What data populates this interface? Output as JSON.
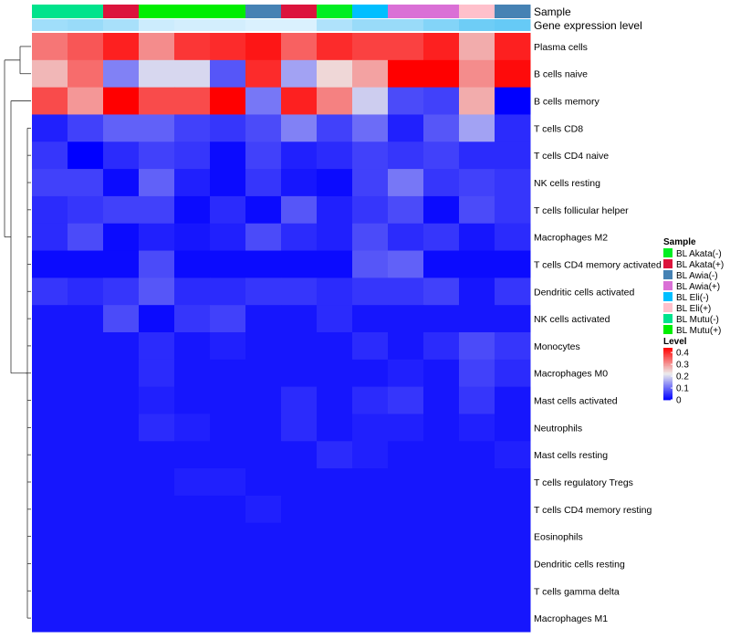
{
  "chart_data": {
    "type": "heatmap",
    "annotation_labels": [
      "Sample",
      "Gene expression level"
    ],
    "columns": [
      {
        "sample": "BL Mutu(-)",
        "expr": 0.55
      },
      {
        "sample": "BL Mutu(-)",
        "expr": 0.6
      },
      {
        "sample": "BL Akata(+)",
        "expr": 0.5
      },
      {
        "sample": "BL Mutu(+)",
        "expr": 0.25
      },
      {
        "sample": "BL Mutu(+)",
        "expr": 0.2
      },
      {
        "sample": "BL Mutu(+)",
        "expr": 0.2
      },
      {
        "sample": "BL Awia(-)",
        "expr": 0.15
      },
      {
        "sample": "BL Akata(+)",
        "expr": 0.15
      },
      {
        "sample": "BL Akata(-)",
        "expr": 0.45
      },
      {
        "sample": "BL Eli(-)",
        "expr": 0.6
      },
      {
        "sample": "BL Awia(+)",
        "expr": 0.6
      },
      {
        "sample": "BL Awia(+)",
        "expr": 0.75
      },
      {
        "sample": "BL Eli(+)",
        "expr": 0.9
      },
      {
        "sample": "BL Awia(-)",
        "expr": 0.95
      }
    ],
    "rows": [
      "Plasma cells",
      "B cells naive",
      "B cells memory",
      "T cells CD8",
      "T cells CD4 naive",
      "NK cells resting",
      "T cells follicular helper",
      "Macrophages M2",
      "T cells CD4 memory activated",
      "Dendritic cells activated",
      "NK cells activated",
      "Monocytes",
      "Macrophages M0",
      "Mast cells activated",
      "Neutrophils",
      "Mast cells resting",
      "T cells regulatory  Tregs",
      "T cells CD4 memory resting",
      "Eosinophils",
      "Dendritic cells resting",
      "T cells gamma delta",
      "Macrophages M1"
    ],
    "values": [
      [
        0.33,
        0.36,
        0.41,
        0.31,
        0.39,
        0.4,
        0.42,
        0.35,
        0.4,
        0.38,
        0.38,
        0.41,
        0.28,
        0.41
      ],
      [
        0.27,
        0.34,
        0.12,
        0.2,
        0.2,
        0.08,
        0.4,
        0.15,
        0.24,
        0.29,
        0.44,
        0.44,
        0.31,
        0.43
      ],
      [
        0.37,
        0.3,
        0.44,
        0.37,
        0.37,
        0.44,
        0.11,
        0.41,
        0.32,
        0.19,
        0.07,
        0.06,
        0.28,
        0.0
      ],
      [
        0.03,
        0.06,
        0.09,
        0.09,
        0.06,
        0.05,
        0.07,
        0.12,
        0.06,
        0.1,
        0.03,
        0.08,
        0.15,
        0.04
      ],
      [
        0.05,
        0.0,
        0.04,
        0.06,
        0.05,
        0.01,
        0.06,
        0.03,
        0.04,
        0.06,
        0.05,
        0.06,
        0.04,
        0.04
      ],
      [
        0.06,
        0.06,
        0.01,
        0.09,
        0.03,
        0.01,
        0.05,
        0.02,
        0.01,
        0.06,
        0.11,
        0.05,
        0.06,
        0.05
      ],
      [
        0.04,
        0.05,
        0.06,
        0.06,
        0.01,
        0.04,
        0.01,
        0.08,
        0.03,
        0.05,
        0.07,
        0.01,
        0.07,
        0.05
      ],
      [
        0.04,
        0.07,
        0.01,
        0.03,
        0.02,
        0.03,
        0.07,
        0.04,
        0.03,
        0.07,
        0.04,
        0.05,
        0.02,
        0.04
      ],
      [
        0.01,
        0.01,
        0.01,
        0.07,
        0.01,
        0.01,
        0.01,
        0.01,
        0.01,
        0.08,
        0.09,
        0.01,
        0.01,
        0.01
      ],
      [
        0.05,
        0.04,
        0.05,
        0.08,
        0.04,
        0.04,
        0.05,
        0.05,
        0.04,
        0.05,
        0.05,
        0.06,
        0.02,
        0.05
      ],
      [
        0.02,
        0.02,
        0.07,
        0.01,
        0.05,
        0.06,
        0.02,
        0.02,
        0.04,
        0.02,
        0.02,
        0.02,
        0.02,
        0.02
      ],
      [
        0.02,
        0.02,
        0.02,
        0.04,
        0.02,
        0.03,
        0.02,
        0.02,
        0.02,
        0.04,
        0.02,
        0.04,
        0.07,
        0.05
      ],
      [
        0.02,
        0.02,
        0.02,
        0.04,
        0.02,
        0.02,
        0.02,
        0.02,
        0.02,
        0.02,
        0.03,
        0.02,
        0.06,
        0.04
      ],
      [
        0.02,
        0.02,
        0.02,
        0.03,
        0.02,
        0.02,
        0.02,
        0.04,
        0.02,
        0.04,
        0.05,
        0.02,
        0.05,
        0.02
      ],
      [
        0.02,
        0.02,
        0.02,
        0.04,
        0.03,
        0.02,
        0.02,
        0.04,
        0.02,
        0.03,
        0.03,
        0.02,
        0.03,
        0.02
      ],
      [
        0.02,
        0.02,
        0.02,
        0.02,
        0.02,
        0.02,
        0.02,
        0.02,
        0.04,
        0.03,
        0.02,
        0.02,
        0.02,
        0.03
      ],
      [
        0.02,
        0.02,
        0.02,
        0.02,
        0.03,
        0.03,
        0.02,
        0.02,
        0.02,
        0.02,
        0.02,
        0.02,
        0.02,
        0.02
      ],
      [
        0.02,
        0.02,
        0.02,
        0.02,
        0.02,
        0.02,
        0.03,
        0.02,
        0.02,
        0.02,
        0.02,
        0.02,
        0.02,
        0.02
      ],
      [
        0.02,
        0.02,
        0.02,
        0.02,
        0.02,
        0.02,
        0.02,
        0.02,
        0.02,
        0.02,
        0.02,
        0.02,
        0.02,
        0.02
      ],
      [
        0.02,
        0.02,
        0.02,
        0.02,
        0.02,
        0.02,
        0.02,
        0.02,
        0.02,
        0.02,
        0.02,
        0.02,
        0.02,
        0.02
      ],
      [
        0.02,
        0.02,
        0.02,
        0.02,
        0.02,
        0.02,
        0.02,
        0.02,
        0.02,
        0.02,
        0.02,
        0.02,
        0.02,
        0.02
      ],
      [
        0.02,
        0.02,
        0.02,
        0.02,
        0.02,
        0.02,
        0.02,
        0.02,
        0.02,
        0.02,
        0.02,
        0.02,
        0.02,
        0.02
      ]
    ],
    "sample_legend": {
      "title": "Sample",
      "items": [
        {
          "label": "BL Akata(-)",
          "color": "#00ee22"
        },
        {
          "label": "BL Akata(+)",
          "color": "#dc143c"
        },
        {
          "label": "BL Awia(-)",
          "color": "#4682b4"
        },
        {
          "label": "BL Awia(+)",
          "color": "#da70d6"
        },
        {
          "label": "BL Eli(-)",
          "color": "#00bfff"
        },
        {
          "label": "BL Eli(+)",
          "color": "#ffc0cb"
        },
        {
          "label": "BL Mutu(-)",
          "color": "#00e38c"
        },
        {
          "label": "BL Mutu(+)",
          "color": "#00ee00"
        }
      ]
    },
    "level_legend": {
      "title": "Level",
      "ticks": [
        "0.4",
        "0.3",
        "0.2",
        "0.1",
        "0"
      ],
      "tick_values": [
        0.4,
        0.3,
        0.2,
        0.1,
        0
      ],
      "range": [
        0,
        0.44
      ]
    },
    "colors": {
      "low": "#0000ff",
      "mid": "#ededed",
      "high": "#ff0000"
    },
    "expr_colors": {
      "low": "#f0f8ff",
      "high": "#5fc8f5"
    }
  }
}
